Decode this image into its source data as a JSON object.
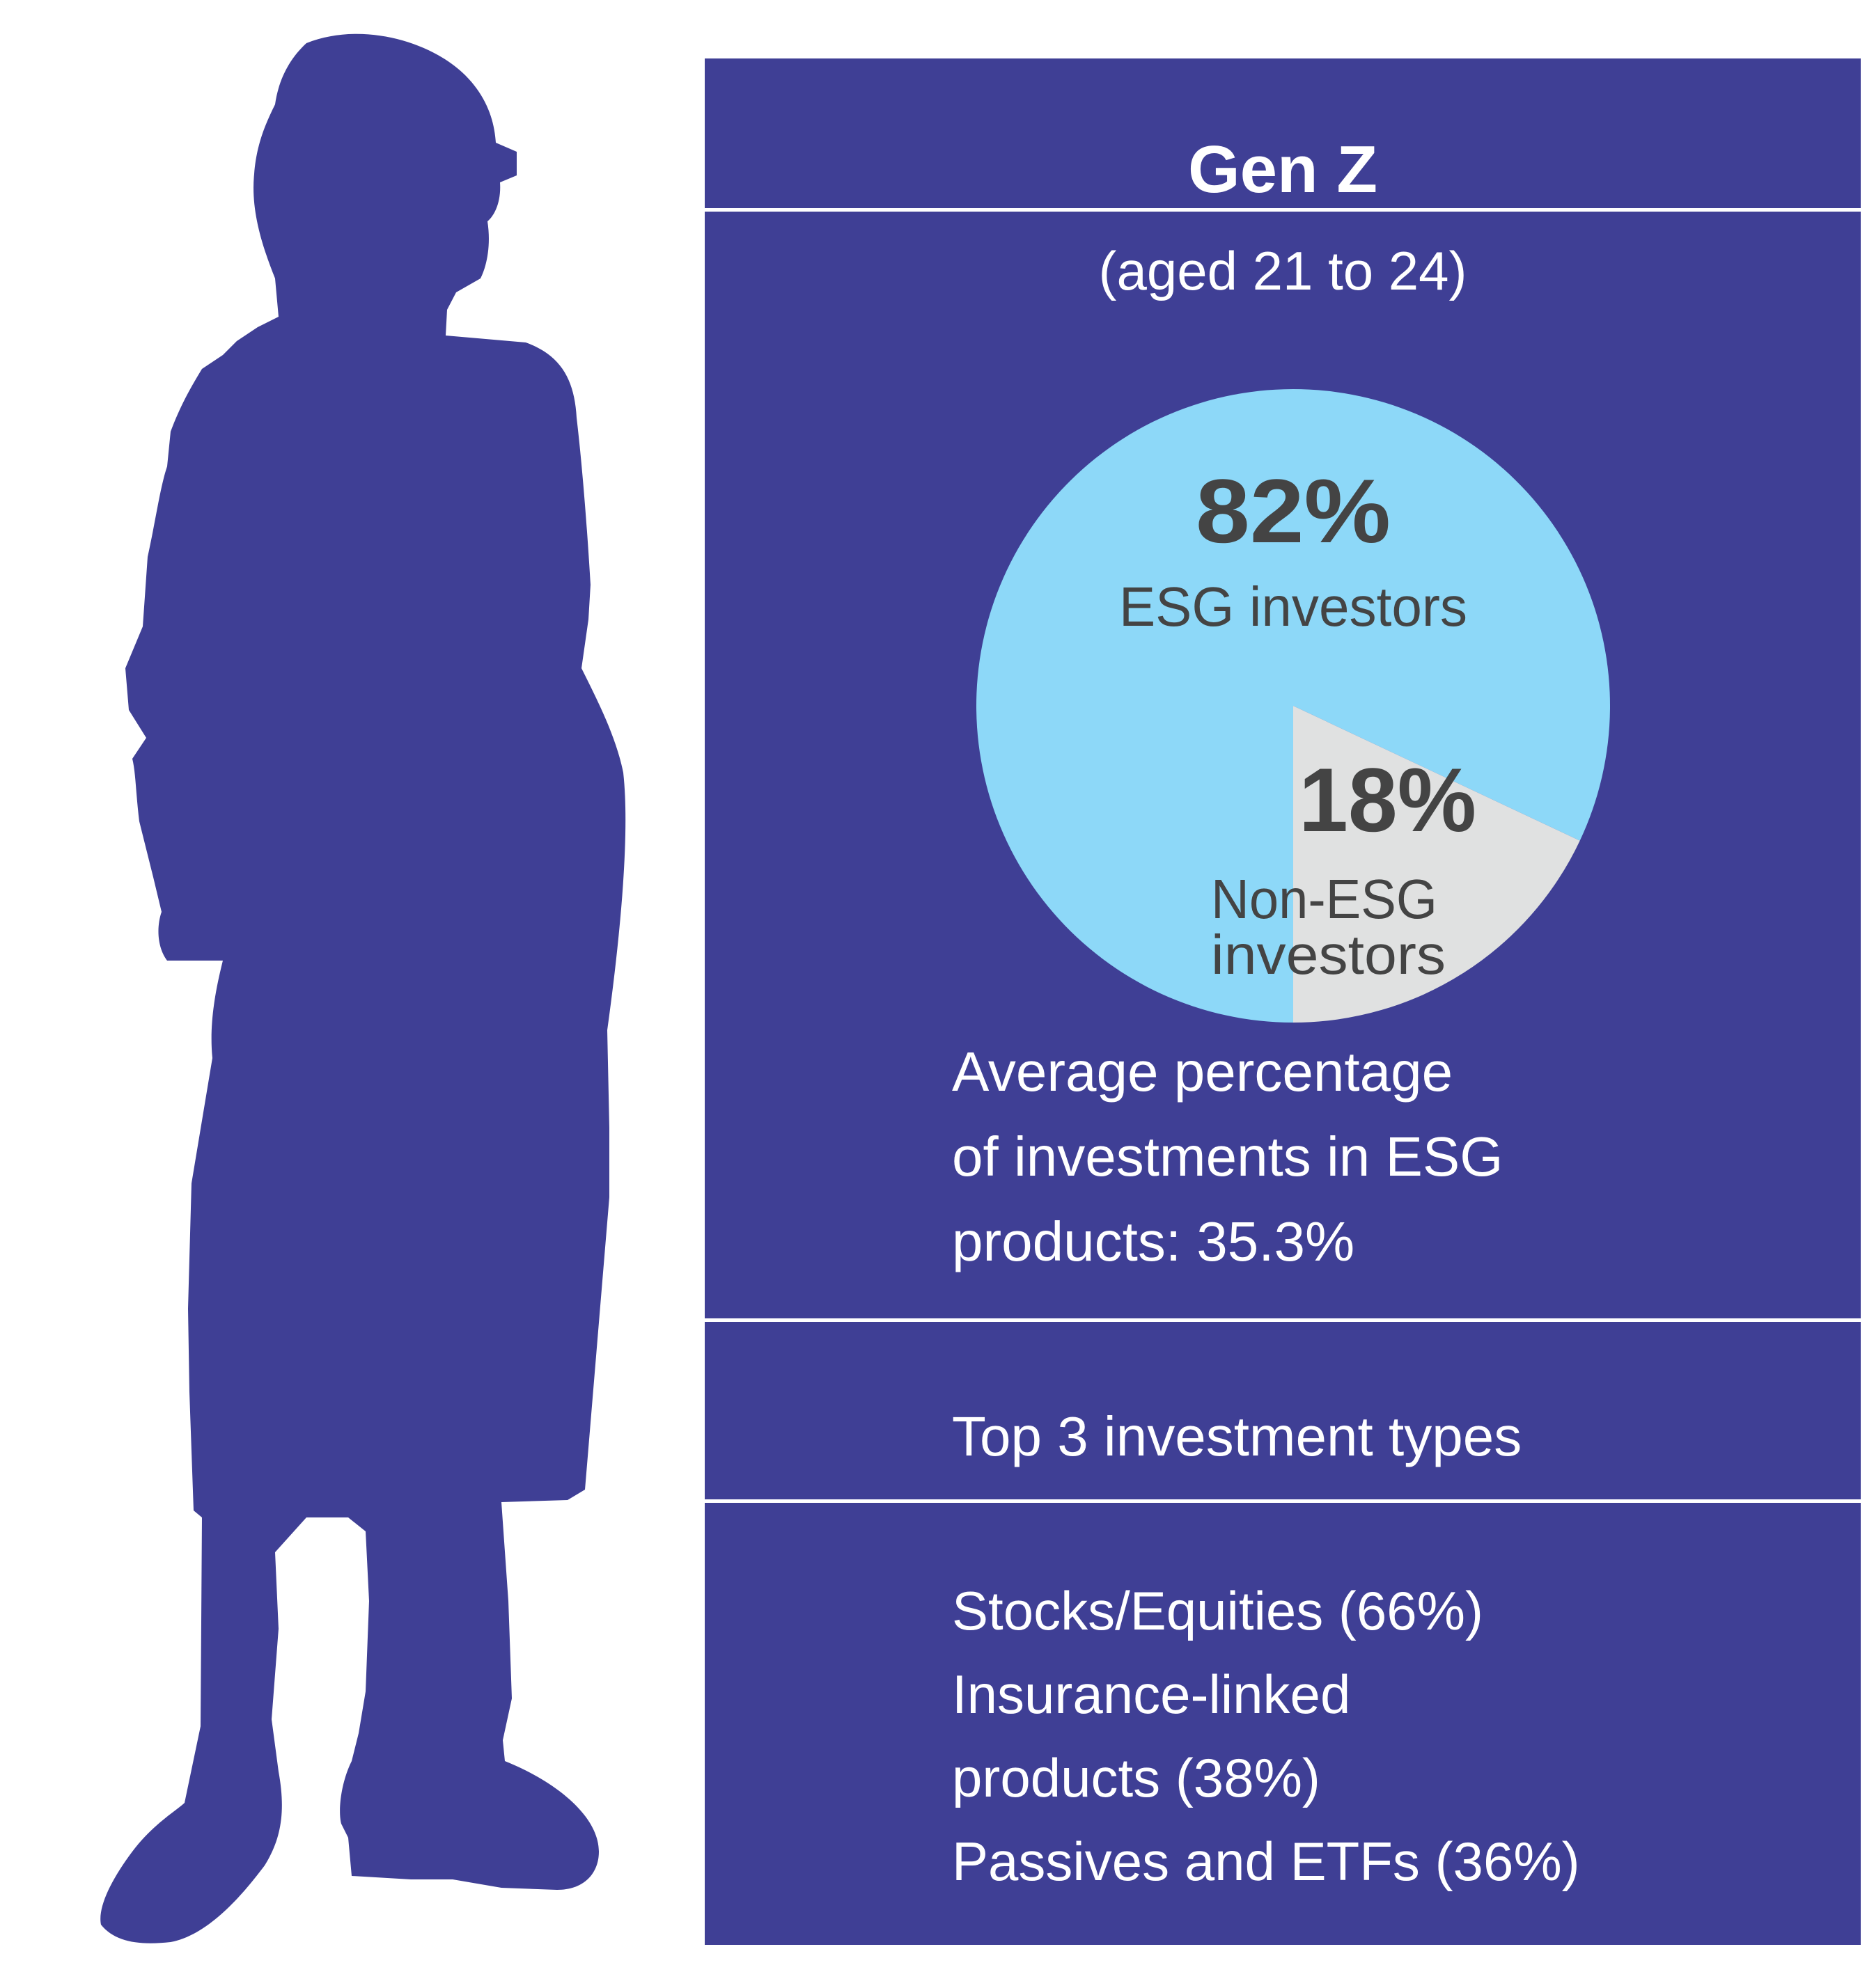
{
  "colors": {
    "panel": "#3f3f95",
    "silhouette": "#3f3f95",
    "esg_slice": "#8dd8f8",
    "non_esg_slice": "#e0e1e1",
    "pie_label_text": "#444444",
    "panel_text": "#ffffff"
  },
  "title": "Gen Z",
  "subtitle": "(aged 21 to 24)",
  "chart_data": {
    "type": "pie",
    "slices": [
      {
        "value_label": "82%",
        "label": "ESG investors",
        "value": 82
      },
      {
        "value_label": "18%",
        "label_lines": [
          "Non-ESG",
          "investors"
        ],
        "value": 18
      }
    ]
  },
  "average": {
    "lines": [
      "Average percentage",
      "of investments in ESG",
      "products: 35.3%"
    ]
  },
  "top3": {
    "heading": "Top 3 investment types",
    "items": [
      "Stocks/Equities (66%)",
      "Insurance-linked",
      "products (38%)",
      "Passives and ETFs (36%)"
    ]
  }
}
